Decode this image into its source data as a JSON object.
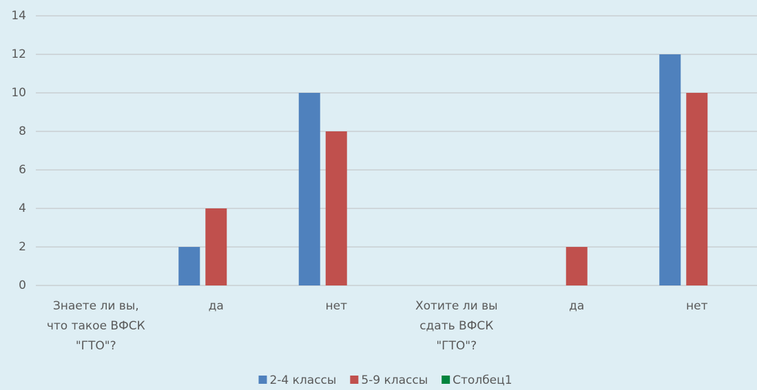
{
  "chart_data": {
    "type": "bar",
    "categories": [
      "Знаете ли вы, что такое ВФСК \"ГТО\"?",
      "да",
      "нет",
      "Хотите ли вы сдать ВФСК \"ГТО\"?",
      "да",
      "нет"
    ],
    "series": [
      {
        "name": "2-4 классы",
        "color": "#4f81bd",
        "values": [
          null,
          2,
          10,
          null,
          null,
          12
        ]
      },
      {
        "name": "5-9 классы",
        "color": "#c0504d",
        "values": [
          null,
          4,
          8,
          null,
          2,
          10
        ]
      },
      {
        "name": "Столбец1",
        "color": "#00843d",
        "values": [
          null,
          null,
          null,
          null,
          null,
          null
        ]
      }
    ],
    "ylim": [
      0,
      14
    ],
    "yticks": [
      0,
      2,
      4,
      6,
      8,
      10,
      12,
      14
    ],
    "grid": true,
    "legend": "bottom"
  }
}
